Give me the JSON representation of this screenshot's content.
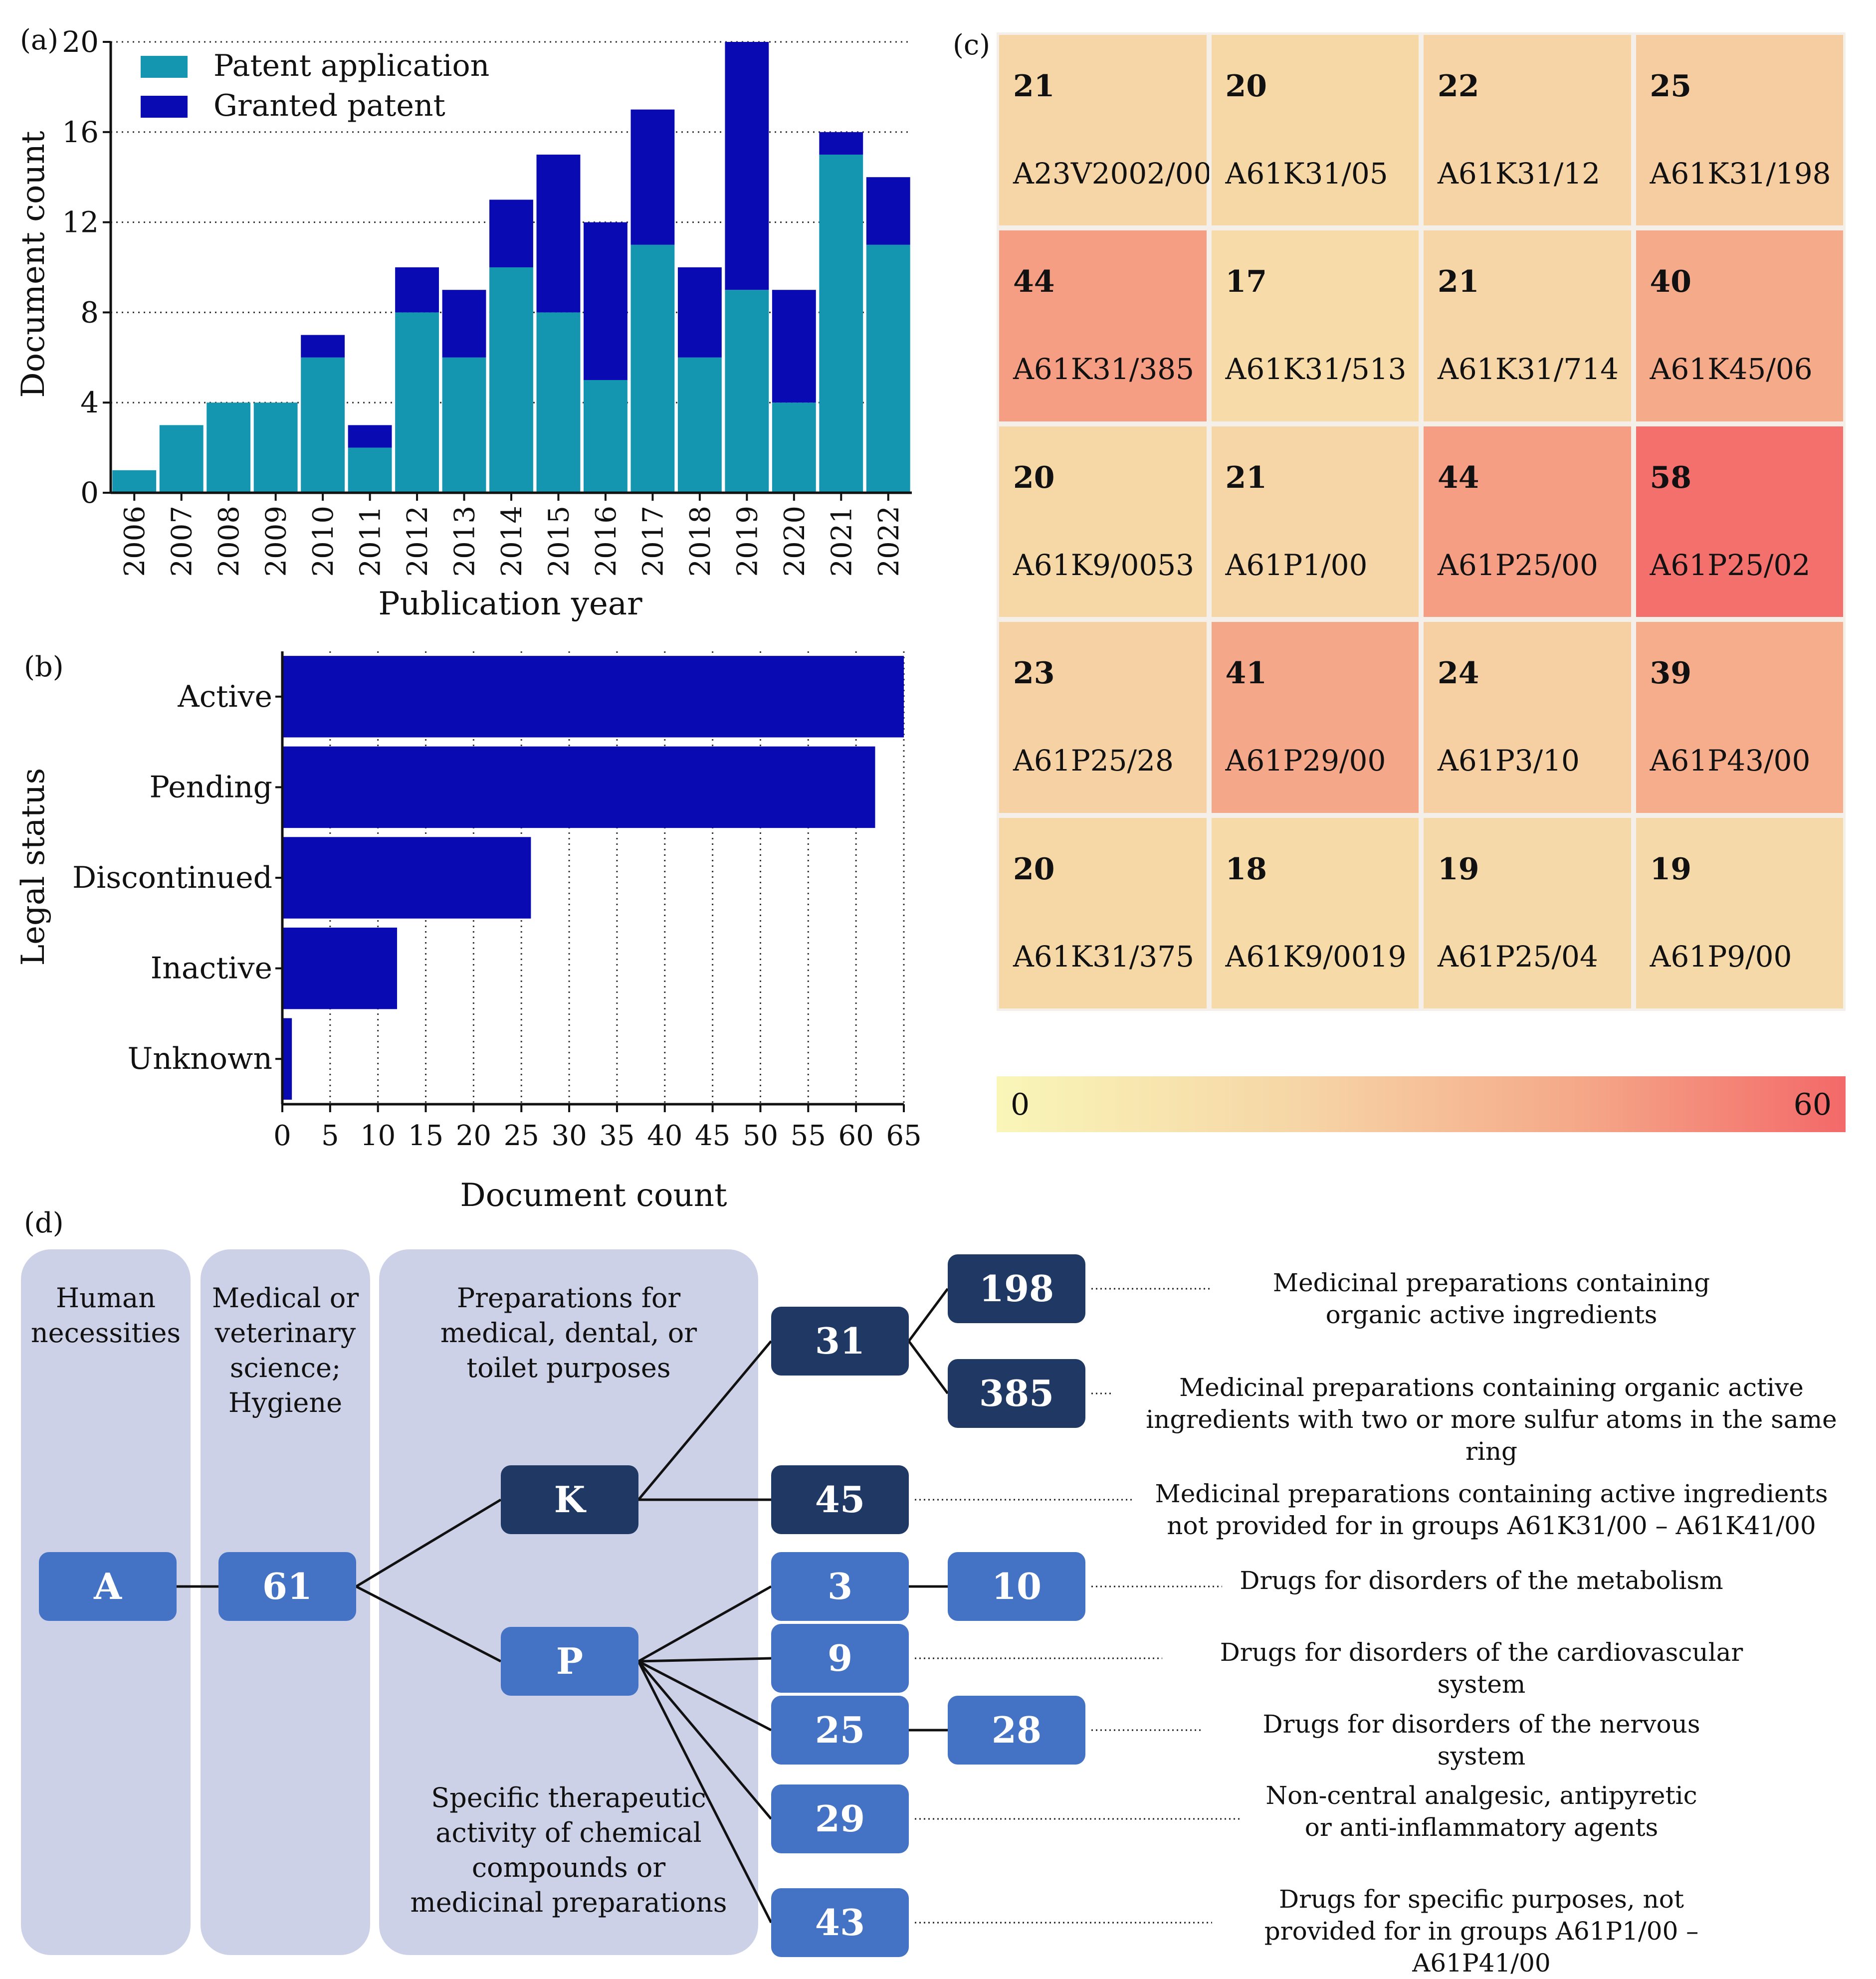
{
  "panel_labels": {
    "a": "(a)",
    "b": "(b)",
    "c": "(c)",
    "d": "(d)"
  },
  "chart_data": [
    {
      "type": "bar",
      "stacked": true,
      "panel": "a",
      "categories": [
        "2006",
        "2007",
        "2008",
        "2009",
        "2010",
        "2011",
        "2012",
        "2013",
        "2014",
        "2015",
        "2016",
        "2017",
        "2018",
        "2019",
        "2020",
        "2021",
        "2022"
      ],
      "series": [
        {
          "name": "Patent application",
          "color": "#1496b1",
          "values": [
            1,
            3,
            4,
            4,
            6,
            2,
            8,
            6,
            10,
            8,
            5,
            11,
            6,
            9,
            4,
            15,
            11
          ]
        },
        {
          "name": "Granted patent",
          "color": "#0a0ab3",
          "values": [
            0,
            0,
            0,
            0,
            1,
            1,
            2,
            3,
            3,
            7,
            7,
            6,
            4,
            11,
            5,
            1,
            3
          ]
        }
      ],
      "xlabel": "Publication year",
      "ylabel": "Document count",
      "ylim": [
        0,
        20
      ],
      "yticks": [
        "0",
        "4",
        "8",
        "12",
        "16",
        "20"
      ],
      "grid": "horizontal dotted",
      "legend": "top-left"
    },
    {
      "type": "bar",
      "orientation": "horizontal",
      "panel": "b",
      "categories": [
        "Active",
        "Pending",
        "Discontinued",
        "Inactive",
        "Unknown"
      ],
      "values": [
        65,
        62,
        26,
        12,
        1
      ],
      "color": "#0a0ab3",
      "xlabel": "Document count",
      "ylabel": "Legal status",
      "xlim": [
        0,
        65
      ],
      "xticks": [
        "0",
        "5",
        "10",
        "15",
        "20",
        "25",
        "30",
        "35",
        "40",
        "45",
        "50",
        "55",
        "60",
        "65"
      ],
      "grid": "vertical dotted"
    },
    {
      "type": "heatmap",
      "panel": "c",
      "rows": 5,
      "cols": 4,
      "cells": [
        {
          "value": "21",
          "code": "A23V2002/00"
        },
        {
          "value": "20",
          "code": "A61K31/05"
        },
        {
          "value": "22",
          "code": "A61K31/12"
        },
        {
          "value": "25",
          "code": "A61K31/198"
        },
        {
          "value": "44",
          "code": "A61K31/385"
        },
        {
          "value": "17",
          "code": "A61K31/513"
        },
        {
          "value": "21",
          "code": "A61K31/714"
        },
        {
          "value": "40",
          "code": "A61K45/06"
        },
        {
          "value": "20",
          "code": "A61K9/0053"
        },
        {
          "value": "21",
          "code": "A61P1/00"
        },
        {
          "value": "44",
          "code": "A61P25/00"
        },
        {
          "value": "58",
          "code": "A61P25/02"
        },
        {
          "value": "23",
          "code": "A61P25/28"
        },
        {
          "value": "41",
          "code": "A61P29/00"
        },
        {
          "value": "24",
          "code": "A61P3/10"
        },
        {
          "value": "39",
          "code": "A61P43/00"
        },
        {
          "value": "20",
          "code": "A61K31/375"
        },
        {
          "value": "18",
          "code": "A61K9/0019"
        },
        {
          "value": "19",
          "code": "A61P25/04"
        },
        {
          "value": "19",
          "code": "A61P9/00"
        }
      ],
      "colorbar": {
        "min": "0",
        "max": "60"
      }
    }
  ],
  "tree": {
    "bands": {
      "section": "Human necessities",
      "class": "Medical or veterinary science; Hygiene",
      "subclass_k": "Preparations for medical, dental, or toilet purposes",
      "subclass_p": "Specific therapeutic activity of chemical compounds or medicinal preparations"
    },
    "nodes": {
      "A": "A",
      "n61": "61",
      "K": "K",
      "P": "P",
      "n31": "31",
      "n198": "198",
      "n385": "385",
      "n45": "45",
      "n3": "3",
      "n10": "10",
      "n9": "9",
      "n25": "25",
      "n28": "28",
      "n29": "29",
      "n43": "43"
    },
    "descriptions": {
      "d198": "Medicinal preparations containing organic active ingredients",
      "d385": "Medicinal preparations containing organic active ingredients with two or more sulfur atoms in the same ring",
      "d45": "Medicinal preparations containing active ingredients not provided for in groups A61K31/00 – A61K41/00",
      "d10": "Drugs for disorders of the metabolism",
      "d9": "Drugs for disorders of the cardiovascular system",
      "d28": "Drugs for disorders of the nervous system",
      "d29": "Non-central analgesic, antipyretic or anti-inflammatory agents",
      "d43": "Drugs for specific purposes, not provided for in groups A61P1/00 – A61P41/00"
    }
  }
}
